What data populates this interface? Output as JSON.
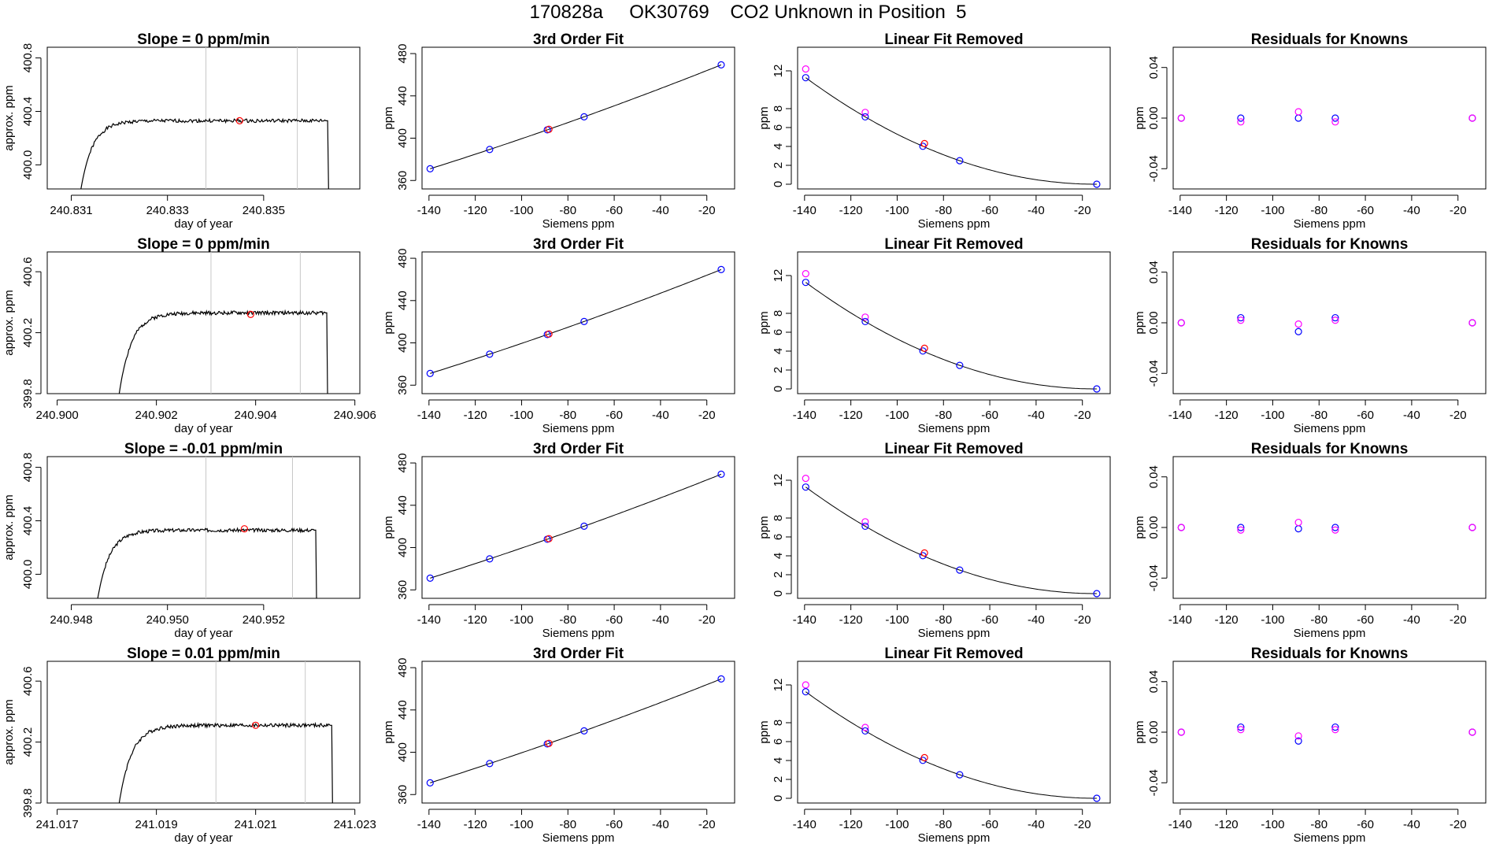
{
  "page_title": "170828a     OK30769    CO2 Unknown in Position  5",
  "colors": {
    "line": "#000000",
    "frame": "#000000",
    "vline": "#c8c8c8",
    "red": "#ff0000",
    "blue": "#0000ff",
    "magenta": "#ff00ff"
  },
  "chart_data": [
    {
      "type": "line",
      "row": 0,
      "col": 0,
      "title": "Slope =  0  ppm/min",
      "xlabel": "day of year",
      "ylabel": "approx. ppm",
      "xlim": [
        240.8305,
        240.837
      ],
      "ylim": [
        399.82,
        400.88
      ],
      "xticks": [
        240.831,
        240.833,
        240.835
      ],
      "yticks": [
        400.0,
        400.4,
        400.8
      ],
      "ytick_labels": [
        "400.0",
        "400.4",
        "400.8"
      ],
      "vlines": [
        240.8338,
        240.8357
      ],
      "marker": {
        "x": 240.8345,
        "y": 400.33
      },
      "trace": {
        "t_start": 240.8312,
        "t_end": 240.83635,
        "base": 399.82,
        "level": 400.33,
        "tau": 0.00025,
        "noise": 0.013,
        "seed": 1
      }
    },
    {
      "type": "scatter_fit",
      "row": 0,
      "col": 1,
      "title": "3rd Order Fit",
      "xlabel": "Siemens ppm",
      "ylabel": "ppm",
      "xlim": [
        -143,
        -8
      ],
      "ylim": [
        352,
        486
      ],
      "xticks": [
        -140,
        -120,
        -100,
        -80,
        -60,
        -40,
        -20
      ],
      "yticks": [
        360,
        400,
        440,
        480
      ],
      "fit": {
        "a": 481.5,
        "b": 0.892,
        "c": 0.00072
      },
      "points": [
        {
          "x": -139.5,
          "color": "blue"
        },
        {
          "x": -113.8,
          "color": "blue"
        },
        {
          "x": -88.9,
          "color": "blue"
        },
        {
          "x": -88.2,
          "color": "red"
        },
        {
          "x": -73.0,
          "color": "blue"
        },
        {
          "x": -13.8,
          "color": "blue"
        }
      ]
    },
    {
      "type": "scatter_fit",
      "row": 0,
      "col": 2,
      "title": "Linear Fit Removed",
      "xlabel": "Siemens ppm",
      "ylabel": "ppm",
      "xlim": [
        -143,
        -8
      ],
      "ylim": [
        -0.5,
        14.5
      ],
      "xticks": [
        -140,
        -120,
        -100,
        -80,
        -60,
        -40,
        -20
      ],
      "yticks": [
        0,
        2,
        4,
        6,
        8,
        12
      ],
      "fit": {
        "a": 0,
        "b": 0,
        "c": 0.000716,
        "x0": -14
      },
      "points": [
        {
          "x": -139.5,
          "y": 12.2,
          "color": "magenta"
        },
        {
          "x": -139.5,
          "color": "blue"
        },
        {
          "x": -113.8,
          "y": 7.6,
          "color": "magenta"
        },
        {
          "x": -113.8,
          "color": "blue"
        },
        {
          "x": -88.9,
          "color": "blue"
        },
        {
          "x": -88.2,
          "y": 4.3,
          "color": "red"
        },
        {
          "x": -73.0,
          "color": "blue"
        },
        {
          "x": -13.8,
          "color": "blue"
        }
      ]
    },
    {
      "type": "scatter",
      "row": 0,
      "col": 3,
      "title": "Residuals for Knowns",
      "xlabel": "Siemens ppm",
      "ylabel": "ppm",
      "xlim": [
        -143,
        -8
      ],
      "ylim": [
        -0.056,
        0.056
      ],
      "xticks": [
        -140,
        -120,
        -100,
        -80,
        -60,
        -40,
        -20
      ],
      "yticks": [
        -0.04,
        0.0,
        0.04
      ],
      "ytick_labels": [
        "-0.04",
        "0.00",
        "0.04"
      ],
      "points": [
        {
          "x": -139.5,
          "y": 0.0,
          "color": "blue"
        },
        {
          "x": -139.5,
          "y": 0.0,
          "color": "magenta"
        },
        {
          "x": -113.8,
          "y": 0.0,
          "color": "blue"
        },
        {
          "x": -113.8,
          "y": -0.003,
          "color": "magenta"
        },
        {
          "x": -88.9,
          "y": 0.0,
          "color": "blue"
        },
        {
          "x": -88.9,
          "y": 0.005,
          "color": "magenta"
        },
        {
          "x": -73.0,
          "y": 0.0,
          "color": "blue"
        },
        {
          "x": -73.0,
          "y": -0.003,
          "color": "magenta"
        },
        {
          "x": -13.8,
          "y": 0.0,
          "color": "blue"
        },
        {
          "x": -13.8,
          "y": 0.0,
          "color": "magenta"
        }
      ]
    },
    {
      "type": "line",
      "row": 1,
      "col": 0,
      "title": "Slope =  0  ppm/min",
      "xlabel": "day of year",
      "ylabel": "approx. ppm",
      "xlim": [
        240.8998,
        240.9061
      ],
      "ylim": [
        399.8,
        400.73
      ],
      "xticks": [
        240.9,
        240.902,
        240.904,
        240.906
      ],
      "yticks": [
        399.8,
        400.2,
        400.6
      ],
      "ytick_labels": [
        "399.8",
        "400.2",
        "400.6"
      ],
      "vlines": [
        240.9031,
        240.9049
      ],
      "marker": {
        "x": 240.9039,
        "y": 400.32
      },
      "trace": {
        "t_start": 240.90125,
        "t_end": 240.90545,
        "base": 399.8,
        "level": 400.33,
        "tau": 0.00025,
        "noise": 0.012,
        "seed": 2
      }
    },
    {
      "type": "scatter_fit",
      "row": 1,
      "col": 1,
      "title": "3rd Order Fit",
      "xlabel": "Siemens ppm",
      "ylabel": "ppm",
      "xlim": [
        -143,
        -8
      ],
      "ylim": [
        352,
        486
      ],
      "xticks": [
        -140,
        -120,
        -100,
        -80,
        -60,
        -40,
        -20
      ],
      "yticks": [
        360,
        400,
        440,
        480
      ],
      "fit": {
        "a": 481.5,
        "b": 0.892,
        "c": 0.00072
      },
      "points": [
        {
          "x": -139.5,
          "color": "blue"
        },
        {
          "x": -113.8,
          "color": "blue"
        },
        {
          "x": -88.9,
          "color": "blue"
        },
        {
          "x": -88.2,
          "color": "red"
        },
        {
          "x": -73.0,
          "color": "blue"
        },
        {
          "x": -13.8,
          "color": "blue"
        }
      ]
    },
    {
      "type": "scatter_fit",
      "row": 1,
      "col": 2,
      "title": "Linear Fit Removed",
      "xlabel": "Siemens ppm",
      "ylabel": "ppm",
      "xlim": [
        -143,
        -8
      ],
      "ylim": [
        -0.5,
        14.5
      ],
      "xticks": [
        -140,
        -120,
        -100,
        -80,
        -60,
        -40,
        -20
      ],
      "yticks": [
        0,
        2,
        4,
        6,
        8,
        12
      ],
      "fit": {
        "a": 0,
        "b": 0,
        "c": 0.000716,
        "x0": -14
      },
      "points": [
        {
          "x": -139.5,
          "y": 12.2,
          "color": "magenta"
        },
        {
          "x": -139.5,
          "color": "blue"
        },
        {
          "x": -113.8,
          "y": 7.6,
          "color": "magenta"
        },
        {
          "x": -113.8,
          "color": "blue"
        },
        {
          "x": -88.9,
          "color": "blue"
        },
        {
          "x": -88.2,
          "y": 4.3,
          "color": "red"
        },
        {
          "x": -73.0,
          "color": "blue"
        },
        {
          "x": -13.8,
          "color": "blue"
        }
      ]
    },
    {
      "type": "scatter",
      "row": 1,
      "col": 3,
      "title": "Residuals for Knowns",
      "xlabel": "Siemens ppm",
      "ylabel": "ppm",
      "xlim": [
        -143,
        -8
      ],
      "ylim": [
        -0.056,
        0.056
      ],
      "xticks": [
        -140,
        -120,
        -100,
        -80,
        -60,
        -40,
        -20
      ],
      "yticks": [
        -0.04,
        0.0,
        0.04
      ],
      "ytick_labels": [
        "-0.04",
        "0.00",
        "0.04"
      ],
      "points": [
        {
          "x": -139.5,
          "y": 0.0,
          "color": "blue"
        },
        {
          "x": -139.5,
          "y": 0.0,
          "color": "magenta"
        },
        {
          "x": -113.8,
          "y": 0.004,
          "color": "blue"
        },
        {
          "x": -113.8,
          "y": 0.002,
          "color": "magenta"
        },
        {
          "x": -88.9,
          "y": -0.007,
          "color": "blue"
        },
        {
          "x": -88.9,
          "y": -0.001,
          "color": "magenta"
        },
        {
          "x": -73.0,
          "y": 0.004,
          "color": "blue"
        },
        {
          "x": -73.0,
          "y": 0.002,
          "color": "magenta"
        },
        {
          "x": -13.8,
          "y": 0.0,
          "color": "blue"
        },
        {
          "x": -13.8,
          "y": 0.0,
          "color": "magenta"
        }
      ]
    },
    {
      "type": "line",
      "row": 2,
      "col": 0,
      "title": "Slope =  -0.01  ppm/min",
      "xlabel": "day of year",
      "ylabel": "approx. ppm",
      "xlim": [
        240.9475,
        240.954
      ],
      "ylim": [
        399.82,
        400.88
      ],
      "xticks": [
        240.948,
        240.95,
        240.952
      ],
      "yticks": [
        400.0,
        400.4,
        400.8
      ],
      "ytick_labels": [
        "400.0",
        "400.4",
        "400.8"
      ],
      "vlines": [
        240.9508,
        240.9526
      ],
      "marker": {
        "x": 240.9516,
        "y": 400.34
      },
      "trace": {
        "t_start": 240.94855,
        "t_end": 240.9531,
        "base": 399.82,
        "level": 400.33,
        "tau": 0.00025,
        "noise": 0.013,
        "seed": 3
      }
    },
    {
      "type": "scatter_fit",
      "row": 2,
      "col": 1,
      "title": "3rd Order Fit",
      "xlabel": "Siemens ppm",
      "ylabel": "ppm",
      "xlim": [
        -143,
        -8
      ],
      "ylim": [
        352,
        486
      ],
      "xticks": [
        -140,
        -120,
        -100,
        -80,
        -60,
        -40,
        -20
      ],
      "yticks": [
        360,
        400,
        440,
        480
      ],
      "fit": {
        "a": 481.5,
        "b": 0.892,
        "c": 0.00072
      },
      "points": [
        {
          "x": -139.5,
          "color": "blue"
        },
        {
          "x": -113.8,
          "color": "blue"
        },
        {
          "x": -88.9,
          "color": "blue"
        },
        {
          "x": -88.2,
          "color": "red"
        },
        {
          "x": -73.0,
          "color": "blue"
        },
        {
          "x": -13.8,
          "color": "blue"
        }
      ]
    },
    {
      "type": "scatter_fit",
      "row": 2,
      "col": 2,
      "title": "Linear Fit Removed",
      "xlabel": "Siemens ppm",
      "ylabel": "ppm",
      "xlim": [
        -143,
        -8
      ],
      "ylim": [
        -0.5,
        14.5
      ],
      "xticks": [
        -140,
        -120,
        -100,
        -80,
        -60,
        -40,
        -20
      ],
      "yticks": [
        0,
        2,
        4,
        6,
        8,
        12
      ],
      "fit": {
        "a": 0,
        "b": 0,
        "c": 0.000716,
        "x0": -14
      },
      "points": [
        {
          "x": -139.5,
          "y": 12.2,
          "color": "magenta"
        },
        {
          "x": -139.5,
          "color": "blue"
        },
        {
          "x": -113.8,
          "y": 7.6,
          "color": "magenta"
        },
        {
          "x": -113.8,
          "color": "blue"
        },
        {
          "x": -88.9,
          "color": "blue"
        },
        {
          "x": -88.2,
          "y": 4.3,
          "color": "red"
        },
        {
          "x": -73.0,
          "color": "blue"
        },
        {
          "x": -13.8,
          "color": "blue"
        }
      ]
    },
    {
      "type": "scatter",
      "row": 2,
      "col": 3,
      "title": "Residuals for Knowns",
      "xlabel": "Siemens ppm",
      "ylabel": "ppm",
      "xlim": [
        -143,
        -8
      ],
      "ylim": [
        -0.056,
        0.056
      ],
      "xticks": [
        -140,
        -120,
        -100,
        -80,
        -60,
        -40,
        -20
      ],
      "yticks": [
        -0.04,
        0.0,
        0.04
      ],
      "ytick_labels": [
        "-0.04",
        "0.00",
        "0.04"
      ],
      "points": [
        {
          "x": -139.5,
          "y": 0.0,
          "color": "blue"
        },
        {
          "x": -139.5,
          "y": 0.0,
          "color": "magenta"
        },
        {
          "x": -113.8,
          "y": 0.0,
          "color": "blue"
        },
        {
          "x": -113.8,
          "y": -0.002,
          "color": "magenta"
        },
        {
          "x": -88.9,
          "y": -0.001,
          "color": "blue"
        },
        {
          "x": -88.9,
          "y": 0.004,
          "color": "magenta"
        },
        {
          "x": -73.0,
          "y": 0.0,
          "color": "blue"
        },
        {
          "x": -73.0,
          "y": -0.002,
          "color": "magenta"
        },
        {
          "x": -13.8,
          "y": 0.0,
          "color": "blue"
        },
        {
          "x": -13.8,
          "y": 0.0,
          "color": "magenta"
        }
      ]
    },
    {
      "type": "line",
      "row": 3,
      "col": 0,
      "title": "Slope =  0.01  ppm/min",
      "xlabel": "day of year",
      "ylabel": "approx. ppm",
      "xlim": [
        241.0168,
        241.0231
      ],
      "ylim": [
        399.8,
        400.73
      ],
      "xticks": [
        241.017,
        241.019,
        241.021,
        241.023
      ],
      "yticks": [
        399.8,
        400.2,
        400.6
      ],
      "ytick_labels": [
        "399.8",
        "400.2",
        "400.6"
      ],
      "vlines": [
        241.0202,
        241.022
      ],
      "marker": {
        "x": 241.021,
        "y": 400.31
      },
      "trace": {
        "t_start": 241.01825,
        "t_end": 241.02255,
        "base": 399.8,
        "level": 400.31,
        "tau": 0.00025,
        "noise": 0.012,
        "seed": 4
      }
    },
    {
      "type": "scatter_fit",
      "row": 3,
      "col": 1,
      "title": "3rd Order Fit",
      "xlabel": "Siemens ppm",
      "ylabel": "ppm",
      "xlim": [
        -143,
        -8
      ],
      "ylim": [
        352,
        486
      ],
      "xticks": [
        -140,
        -120,
        -100,
        -80,
        -60,
        -40,
        -20
      ],
      "yticks": [
        360,
        400,
        440,
        480
      ],
      "fit": {
        "a": 481.5,
        "b": 0.892,
        "c": 0.00072
      },
      "points": [
        {
          "x": -139.5,
          "color": "blue"
        },
        {
          "x": -113.8,
          "color": "blue"
        },
        {
          "x": -88.9,
          "color": "blue"
        },
        {
          "x": -88.2,
          "color": "red"
        },
        {
          "x": -73.0,
          "color": "blue"
        },
        {
          "x": -13.8,
          "color": "blue"
        }
      ]
    },
    {
      "type": "scatter_fit",
      "row": 3,
      "col": 2,
      "title": "Linear Fit Removed",
      "xlabel": "Siemens ppm",
      "ylabel": "ppm",
      "xlim": [
        -143,
        -8
      ],
      "ylim": [
        -0.5,
        14.5
      ],
      "xticks": [
        -140,
        -120,
        -100,
        -80,
        -60,
        -40,
        -20
      ],
      "yticks": [
        0,
        2,
        4,
        6,
        8,
        12
      ],
      "fit": {
        "a": 0,
        "b": 0,
        "c": 0.000716,
        "x0": -14
      },
      "points": [
        {
          "x": -139.5,
          "y": 12.0,
          "color": "magenta"
        },
        {
          "x": -139.5,
          "color": "blue"
        },
        {
          "x": -113.8,
          "y": 7.5,
          "color": "magenta"
        },
        {
          "x": -113.8,
          "color": "blue"
        },
        {
          "x": -88.9,
          "color": "blue"
        },
        {
          "x": -88.2,
          "y": 4.3,
          "color": "red"
        },
        {
          "x": -73.0,
          "color": "blue"
        },
        {
          "x": -13.8,
          "color": "blue"
        }
      ]
    },
    {
      "type": "scatter",
      "row": 3,
      "col": 3,
      "title": "Residuals for Knowns",
      "xlabel": "Siemens ppm",
      "ylabel": "ppm",
      "xlim": [
        -143,
        -8
      ],
      "ylim": [
        -0.056,
        0.056
      ],
      "xticks": [
        -140,
        -120,
        -100,
        -80,
        -60,
        -40,
        -20
      ],
      "yticks": [
        -0.04,
        0.0,
        0.04
      ],
      "ytick_labels": [
        "-0.04",
        "0.00",
        "0.04"
      ],
      "points": [
        {
          "x": -139.5,
          "y": 0.0,
          "color": "blue"
        },
        {
          "x": -139.5,
          "y": 0.0,
          "color": "magenta"
        },
        {
          "x": -113.8,
          "y": 0.004,
          "color": "blue"
        },
        {
          "x": -113.8,
          "y": 0.002,
          "color": "magenta"
        },
        {
          "x": -88.9,
          "y": -0.007,
          "color": "blue"
        },
        {
          "x": -88.9,
          "y": -0.003,
          "color": "magenta"
        },
        {
          "x": -73.0,
          "y": 0.004,
          "color": "blue"
        },
        {
          "x": -73.0,
          "y": 0.002,
          "color": "magenta"
        },
        {
          "x": -13.8,
          "y": 0.0,
          "color": "blue"
        },
        {
          "x": -13.8,
          "y": 0.0,
          "color": "magenta"
        }
      ]
    }
  ]
}
